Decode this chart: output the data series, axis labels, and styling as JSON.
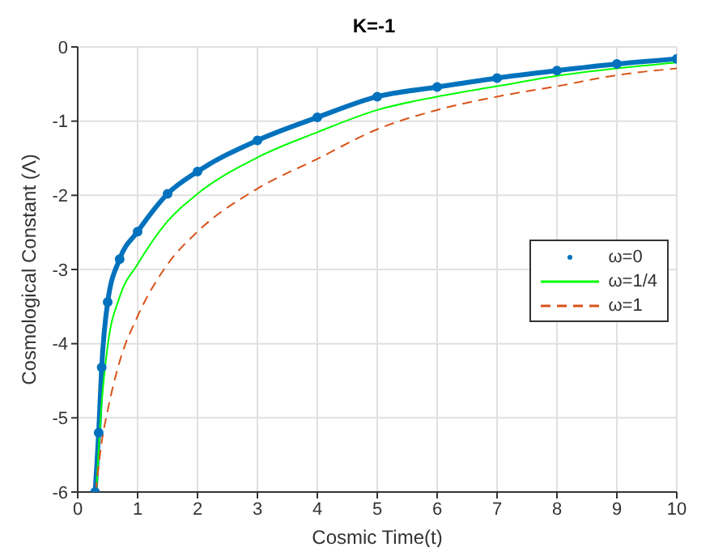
{
  "chart_data": {
    "type": "line",
    "title": "K=-1",
    "xlabel": "Cosmic Time(t)",
    "ylabel": "Cosmological Constant (Λ)",
    "xlim": [
      0,
      10
    ],
    "ylim": [
      -6,
      0
    ],
    "xticks": [
      0,
      1,
      2,
      3,
      4,
      5,
      6,
      7,
      8,
      9,
      10
    ],
    "yticks": [
      -6,
      -5,
      -4,
      -3,
      -2,
      -1,
      0
    ],
    "grid": true,
    "legend": "right",
    "series": [
      {
        "name": "ω=0",
        "color": "#0072bd",
        "marker": "circle",
        "line_style": "solid",
        "x": [
          0.29,
          0.35,
          0.4,
          0.5,
          0.7,
          1,
          1.5,
          2,
          3,
          4,
          5,
          6,
          7,
          8,
          9,
          10
        ],
        "values": [
          -6,
          -5.2,
          -4.32,
          -3.44,
          -2.86,
          -2.49,
          -1.98,
          -1.68,
          -1.26,
          -0.95,
          -0.67,
          -0.54,
          -0.42,
          -0.32,
          -0.23,
          -0.16
        ]
      },
      {
        "name": "ω=1/4",
        "color": "#00ff00",
        "marker": "none",
        "line_style": "solid",
        "x": [
          0.31,
          0.4,
          0.5,
          0.7,
          1,
          1.5,
          2,
          3,
          4,
          5,
          6,
          7,
          8,
          9,
          10
        ],
        "values": [
          -6,
          -4.8,
          -4.03,
          -3.37,
          -2.93,
          -2.35,
          -1.98,
          -1.49,
          -1.15,
          -0.85,
          -0.67,
          -0.53,
          -0.39,
          -0.29,
          -0.21
        ]
      },
      {
        "name": "ω=1",
        "color": "#d95319",
        "marker": "none",
        "line_style": "dashed",
        "x": [
          0.3,
          0.4,
          0.5,
          0.7,
          1,
          1.5,
          2,
          3,
          4,
          5,
          6,
          7,
          8,
          9,
          10
        ],
        "values": [
          -6,
          -5.33,
          -4.9,
          -4.24,
          -3.63,
          -2.93,
          -2.49,
          -1.91,
          -1.51,
          -1.11,
          -0.85,
          -0.67,
          -0.53,
          -0.38,
          -0.29
        ]
      }
    ]
  }
}
